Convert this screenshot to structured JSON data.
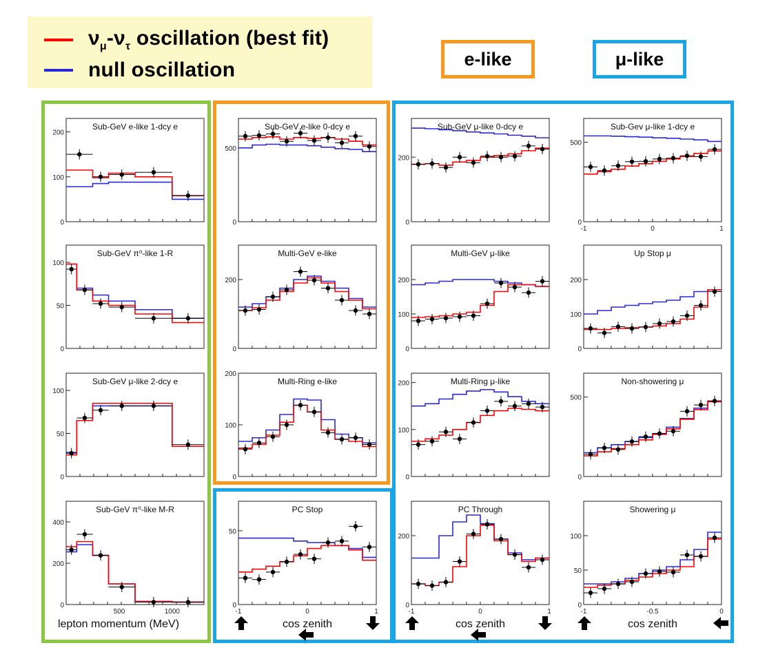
{
  "legend": {
    "osc_label": "oscillation (best fit)",
    "null_label": "null oscillation",
    "nu": "ν",
    "sub_mu": "μ",
    "dash": "-",
    "sub_tau": "τ"
  },
  "groups": {
    "e_like": "e-like",
    "mu_like": "μ-like"
  },
  "colors": {
    "best_fit": "#ff0000",
    "null": "#2828d8",
    "e_like_frame": "#f7991f",
    "mu_like_frame": "#1aa6e6",
    "momentum_frame": "#8cc643",
    "legend_bg": "#fdf8c8"
  },
  "axis_labels": {
    "momentum": "lepton momentum (MeV)",
    "zenith": "cos zenith"
  },
  "chart_data": [
    {
      "id": "p00",
      "title": "Sub-GeV e-like 1-dcy e",
      "type": "histogram",
      "xlim": [
        0,
        1300
      ],
      "ylim": [
        0,
        230
      ],
      "xbins": [
        0,
        250,
        400,
        650,
        1000,
        1300
      ],
      "yticks": [
        0,
        100,
        200
      ],
      "xticks": [],
      "best_fit": [
        115,
        98,
        108,
        100,
        58
      ],
      "null": [
        78,
        85,
        88,
        88,
        50
      ],
      "data": [
        150,
        100,
        105,
        110,
        58
      ]
    },
    {
      "id": "p01",
      "title": "Sub-GeV e-like 0-dcy e",
      "type": "histogram",
      "xlim": [
        -1,
        1
      ],
      "ylim": [
        0,
        700
      ],
      "xbins": [
        -1,
        -0.8,
        -0.6,
        -0.4,
        -0.2,
        0,
        0.2,
        0.4,
        0.6,
        0.8,
        1
      ],
      "yticks": [
        0,
        500
      ],
      "xticks": [],
      "best_fit": [
        560,
        570,
        575,
        560,
        570,
        565,
        570,
        560,
        545,
        520
      ],
      "null": [
        500,
        520,
        525,
        520,
        520,
        515,
        505,
        495,
        490,
        475
      ],
      "data": [
        580,
        585,
        595,
        545,
        600,
        550,
        570,
        535,
        580,
        510
      ]
    },
    {
      "id": "p02",
      "title": "Sub-GeV μ-like 0-dcy e",
      "type": "histogram",
      "xlim": [
        -1,
        1
      ],
      "ylim": [
        0,
        320
      ],
      "xbins": [
        -1,
        -0.8,
        -0.6,
        -0.4,
        -0.2,
        0,
        0.2,
        0.4,
        0.6,
        0.8,
        1
      ],
      "yticks": [
        0,
        200
      ],
      "xticks": [],
      "best_fit": [
        178,
        180,
        175,
        185,
        190,
        200,
        205,
        210,
        220,
        228
      ],
      "null": [
        290,
        288,
        285,
        282,
        278,
        275,
        272,
        268,
        265,
        260
      ],
      "data": [
        178,
        180,
        168,
        200,
        183,
        203,
        200,
        203,
        235,
        225
      ]
    },
    {
      "id": "p03",
      "title": "Sub-Gev μ-like 1-dcy e",
      "type": "histogram",
      "xlim": [
        -1,
        1
      ],
      "ylim": [
        0,
        650
      ],
      "xbins": [
        -1,
        -0.8,
        -0.6,
        -0.4,
        -0.2,
        0,
        0.2,
        0.4,
        0.6,
        0.8,
        1
      ],
      "yticks": [
        0,
        500
      ],
      "xticks": [
        -1,
        0,
        1
      ],
      "best_fit": [
        300,
        315,
        330,
        350,
        365,
        380,
        395,
        410,
        430,
        445
      ],
      "null": [
        540,
        540,
        538,
        535,
        532,
        528,
        525,
        520,
        515,
        505
      ],
      "data": [
        345,
        322,
        352,
        378,
        380,
        395,
        400,
        415,
        410,
        455
      ]
    },
    {
      "id": "p10",
      "title": "Sub-GeV π⁰-like 1-R",
      "type": "histogram",
      "xlim": [
        0,
        1300
      ],
      "ylim": [
        0,
        120
      ],
      "xbins": [
        0,
        100,
        250,
        400,
        650,
        1000,
        1300
      ],
      "yticks": [
        0,
        50,
        100
      ],
      "xticks": [],
      "best_fit": [
        98,
        68,
        55,
        50,
        40,
        30
      ],
      "null": [
        98,
        70,
        62,
        55,
        45,
        35
      ],
      "data": [
        92,
        68,
        52,
        48,
        35,
        35
      ]
    },
    {
      "id": "p11",
      "title": "Multi-GeV  e-like",
      "type": "histogram",
      "xlim": [
        -1,
        1
      ],
      "ylim": [
        0,
        300
      ],
      "xbins": [
        -1,
        -0.8,
        -0.6,
        -0.4,
        -0.2,
        0,
        0.2,
        0.4,
        0.6,
        0.8,
        1
      ],
      "yticks": [
        0,
        200
      ],
      "xticks": [],
      "best_fit": [
        110,
        118,
        140,
        165,
        190,
        205,
        190,
        165,
        140,
        115
      ],
      "null": [
        120,
        130,
        150,
        175,
        200,
        210,
        195,
        175,
        145,
        120
      ],
      "data": [
        110,
        113,
        150,
        170,
        223,
        198,
        175,
        140,
        110,
        100
      ]
    },
    {
      "id": "p12",
      "title": "Multi-GeV μ-like",
      "type": "histogram",
      "xlim": [
        -1,
        1
      ],
      "ylim": [
        0,
        300
      ],
      "xbins": [
        -1,
        -0.8,
        -0.6,
        -0.4,
        -0.2,
        0,
        0.2,
        0.4,
        0.6,
        0.8,
        1
      ],
      "yticks": [
        0,
        100,
        200
      ],
      "xticks": [],
      "best_fit": [
        90,
        92,
        95,
        100,
        105,
        125,
        165,
        185,
        185,
        180
      ],
      "null": [
        185,
        190,
        195,
        200,
        200,
        200,
        195,
        190,
        185,
        180
      ],
      "data": [
        80,
        85,
        88,
        92,
        95,
        130,
        190,
        178,
        162,
        195
      ]
    },
    {
      "id": "p13",
      "title": "Up Stop μ",
      "type": "histogram",
      "xlim": [
        -1,
        0
      ],
      "ylim": [
        0,
        300
      ],
      "xbins": [
        -1,
        -0.9,
        -0.8,
        -0.7,
        -0.6,
        -0.5,
        -0.4,
        -0.3,
        -0.2,
        -0.1,
        0
      ],
      "yticks": [
        0,
        100,
        200
      ],
      "xticks": [],
      "best_fit": [
        55,
        55,
        58,
        60,
        62,
        65,
        72,
        85,
        120,
        170
      ],
      "null": [
        100,
        110,
        120,
        125,
        130,
        135,
        140,
        150,
        165,
        170
      ],
      "data": [
        58,
        45,
        63,
        58,
        62,
        72,
        78,
        95,
        125,
        165
      ]
    },
    {
      "id": "p20",
      "title": "Sub-GeV μ-like 2-dcy e",
      "type": "histogram",
      "xlim": [
        0,
        1300
      ],
      "ylim": [
        0,
        120
      ],
      "xbins": [
        0,
        100,
        250,
        400,
        650,
        1000,
        1300
      ],
      "yticks": [
        0,
        50,
        100
      ],
      "xticks": [],
      "best_fit": [
        25,
        65,
        85,
        85,
        85,
        35
      ],
      "null": [
        28,
        65,
        82,
        82,
        82,
        35
      ],
      "data": [
        27,
        68,
        77,
        82,
        82,
        37
      ]
    },
    {
      "id": "p21",
      "title": "Multi-Ring e-like",
      "type": "histogram",
      "xlim": [
        -1,
        1
      ],
      "ylim": [
        0,
        200
      ],
      "xbins": [
        -1,
        -0.8,
        -0.6,
        -0.4,
        -0.2,
        0,
        0.2,
        0.4,
        0.6,
        0.8,
        1
      ],
      "yticks": [
        0,
        100,
        200
      ],
      "xticks": [],
      "best_fit": [
        55,
        62,
        80,
        105,
        138,
        125,
        90,
        72,
        68,
        58
      ],
      "null": [
        68,
        75,
        90,
        120,
        150,
        148,
        110,
        82,
        75,
        65
      ],
      "data": [
        53,
        65,
        77,
        100,
        138,
        125,
        85,
        72,
        75,
        62
      ]
    },
    {
      "id": "p22",
      "title": "Multi-Ring μ-like",
      "type": "histogram",
      "xlim": [
        -1,
        1
      ],
      "ylim": [
        0,
        220
      ],
      "xbins": [
        -1,
        -0.8,
        -0.6,
        -0.4,
        -0.2,
        0,
        0.2,
        0.4,
        0.6,
        0.8,
        1
      ],
      "yticks": [
        0,
        100,
        200
      ],
      "xticks": [],
      "best_fit": [
        75,
        80,
        88,
        100,
        115,
        130,
        140,
        145,
        143,
        140
      ],
      "null": [
        150,
        155,
        165,
        175,
        182,
        185,
        180,
        170,
        160,
        155
      ],
      "data": [
        68,
        75,
        95,
        80,
        115,
        140,
        160,
        150,
        155,
        148
      ]
    },
    {
      "id": "p23",
      "title": "Non-showering  μ",
      "type": "histogram",
      "xlim": [
        -1,
        0
      ],
      "ylim": [
        0,
        650
      ],
      "xbins": [
        -1,
        -0.9,
        -0.8,
        -0.7,
        -0.6,
        -0.5,
        -0.4,
        -0.3,
        -0.2,
        -0.1,
        0
      ],
      "yticks": [
        0,
        500
      ],
      "xticks": [],
      "best_fit": [
        130,
        155,
        175,
        200,
        230,
        265,
        300,
        360,
        420,
        470
      ],
      "null": [
        150,
        180,
        200,
        220,
        245,
        270,
        310,
        365,
        430,
        475
      ],
      "data": [
        140,
        180,
        170,
        220,
        250,
        270,
        285,
        410,
        450,
        475
      ]
    },
    {
      "id": "p30",
      "title": "Sub-GeV π⁰-like M-R",
      "type": "histogram",
      "xlim": [
        0,
        1300
      ],
      "ylim": [
        0,
        500
      ],
      "xbins": [
        0,
        100,
        250,
        400,
        650,
        1000,
        1300
      ],
      "yticks": [
        0,
        200,
        400
      ],
      "xticks": [
        500,
        1000
      ],
      "xlabel": "lepton momentum (MeV)",
      "best_fit": [
        280,
        305,
        238,
        100,
        15,
        12
      ],
      "null": [
        255,
        290,
        238,
        100,
        15,
        12
      ],
      "data": [
        265,
        340,
        238,
        85,
        12,
        12
      ]
    },
    {
      "id": "p31",
      "title": "PC Stop",
      "type": "histogram",
      "xlim": [
        -1,
        1
      ],
      "ylim": [
        0,
        70
      ],
      "xbins": [
        -1,
        -0.8,
        -0.6,
        -0.4,
        -0.2,
        0,
        0.2,
        0.4,
        0.6,
        0.8,
        1
      ],
      "yticks": [
        0,
        50
      ],
      "xticks": [
        -1,
        0,
        1
      ],
      "xlabel": "cos zenith",
      "best_fit": [
        22,
        24,
        26,
        29,
        33,
        38,
        40,
        40,
        37,
        30
      ],
      "null": [
        45,
        45,
        45,
        45,
        43,
        42,
        42,
        40,
        38,
        32
      ],
      "data": [
        18,
        17,
        22,
        29,
        34,
        31,
        42,
        43,
        53,
        39
      ]
    },
    {
      "id": "p32",
      "title": "PC Through",
      "type": "histogram",
      "xlim": [
        -1,
        1
      ],
      "ylim": [
        0,
        300
      ],
      "xbins": [
        -1,
        -0.8,
        -0.6,
        -0.4,
        -0.2,
        0,
        0.2,
        0.4,
        0.6,
        0.8,
        1
      ],
      "yticks": [
        0,
        200
      ],
      "xticks": [
        -1,
        0,
        1
      ],
      "xlabel": "cos zenith",
      "best_fit": [
        60,
        55,
        65,
        110,
        200,
        230,
        185,
        145,
        125,
        135
      ],
      "null": [
        135,
        135,
        200,
        240,
        260,
        235,
        190,
        150,
        130,
        135
      ],
      "data": [
        60,
        55,
        65,
        125,
        205,
        233,
        190,
        145,
        108,
        130
      ]
    },
    {
      "id": "p33",
      "title": "Showering  μ",
      "type": "histogram",
      "xlim": [
        -1,
        0
      ],
      "ylim": [
        0,
        150
      ],
      "xbins": [
        -1,
        -0.9,
        -0.8,
        -0.7,
        -0.6,
        -0.5,
        -0.4,
        -0.3,
        -0.2,
        -0.1,
        0
      ],
      "yticks": [
        0,
        50,
        100
      ],
      "xticks": [
        -1,
        -0.5,
        0
      ],
      "xlabel": "cos zenith",
      "best_fit": [
        25,
        28,
        30,
        35,
        40,
        45,
        50,
        55,
        70,
        95
      ],
      "null": [
        30,
        30,
        33,
        38,
        45,
        50,
        55,
        65,
        80,
        105
      ],
      "data": [
        17,
        23,
        30,
        33,
        45,
        48,
        47,
        72,
        70,
        97
      ]
    }
  ]
}
